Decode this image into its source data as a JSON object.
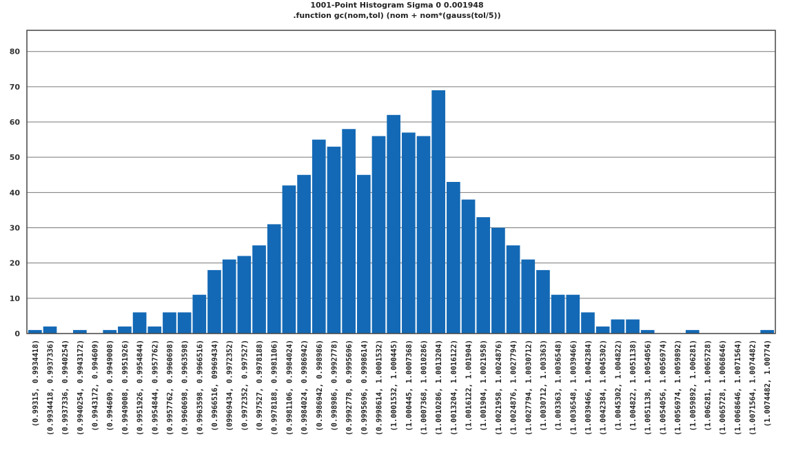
{
  "chart_data": {
    "type": "bar",
    "title": "1001-Point Histogram Sigma 0 0.001948",
    "subtitle": ".function gc(nom,tol) (nom + nom*(gauss(tol/5))",
    "xlabel": "",
    "ylabel": "",
    "ylim": [
      0,
      86
    ],
    "yticks": [
      0,
      10,
      20,
      30,
      40,
      50,
      60,
      70,
      80
    ],
    "grid": true,
    "legend": "none",
    "bar_color": "#1369b5",
    "categories": [
      "(0.99315, 0.9934418)",
      "(0.9934418, 0.9937336)",
      "(0.9937336, 0.9940254)",
      "(0.9940254, 0.9943172)",
      "(0.9943172, 0.994609)",
      "(0.994609, 0.9949008)",
      "(0.9949008, 0.9951926)",
      "(0.9951926, 0.9954844)",
      "(0.9954844, 0.9957762)",
      "(0.9957762, 0.9960698)",
      "(0.9960698, 0.9963598)",
      "(0.9963598, 0.9966516)",
      "(0.9966516, 09969434)",
      "(09969434, 0.9972352)",
      "(0.9972352, 0.997527)",
      "(0.997527, 0.9978188)",
      "(0.9978188, 0.9981106)",
      "(0.9981106, 0.9984024)",
      "(0.9984024, 0.9986942)",
      "(0.9986942, 0.998986)",
      "(0.998986, 0.9992778)",
      "(0.9992778, 0.9995696)",
      "(0.9995696, 0.9998614)",
      "(0.9998614, 1.0001532)",
      "(1.0001532, 1.000445)",
      "(1.000445, 1.0007368)",
      "(1.0007368, 1.0010286)",
      "(1.0010286, 1.0013204)",
      "(1.0013204, 1.0016122)",
      "(1.0016122, 1.001904)",
      "(1.001904, 1.0021958)",
      "(1.0021958, 1.0024876)",
      "(1.0024876, 1.0027794)",
      "(1.0027794, 1.0030712)",
      "(1.0030712, 1.003363)",
      "(1.003363, 1.0036548)",
      "(1.0036548, 1.0039466)",
      "(1.0039466, 1.0042384)",
      "(1.0042384, 1.0045302)",
      "(1.0045302, 1.004822)",
      "(1.004822, 1.0051138)",
      "(1.0051138, 1.0054056)",
      "(1.0054056, 1.0056974)",
      "(1.0056974, 1.0059892)",
      "(1.0059892, 1.006281)",
      "(1.006281, 1.0065728)",
      "(1.0065728, 1.0068646)",
      "(1.0068646, 1.0071564)",
      "(1.0071564, 1.0074482)",
      "(1.0074482, 1.00774)"
    ],
    "values": [
      1,
      2,
      0,
      1,
      0,
      1,
      2,
      6,
      2,
      6,
      6,
      11,
      18,
      21,
      22,
      25,
      31,
      42,
      45,
      55,
      53,
      58,
      45,
      56,
      62,
      57,
      56,
      69,
      43,
      38,
      33,
      30,
      25,
      21,
      18,
      11,
      11,
      6,
      2,
      4,
      4,
      1,
      0,
      0,
      1,
      0,
      0,
      0,
      0,
      1
    ]
  }
}
